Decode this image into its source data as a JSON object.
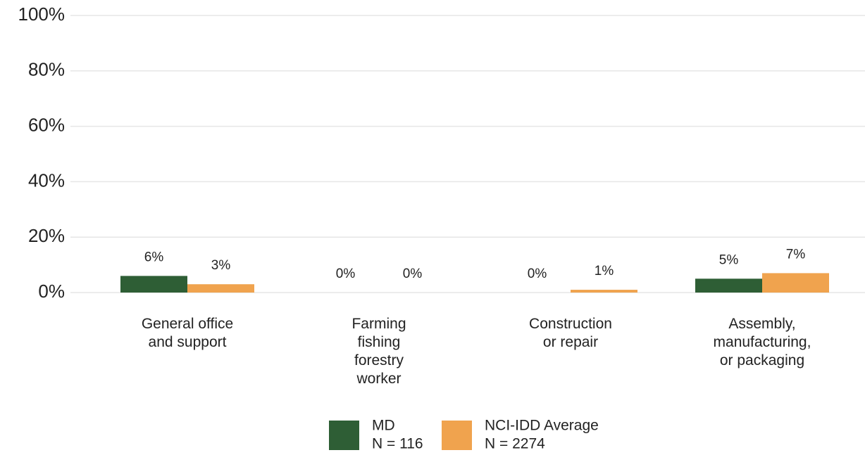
{
  "chart_data": {
    "type": "bar",
    "categories": [
      "General office\nand support",
      "Farming\nfishing\nforestry\nworker",
      "Construction\nor repair",
      "Assembly,\nmanufacturing,\nor packaging"
    ],
    "series": [
      {
        "name": "MD",
        "n_label": "N = 116",
        "color": "#2e5e35",
        "values": [
          6,
          0,
          0,
          5
        ],
        "value_labels": [
          "6%",
          "0%",
          "0%",
          "5%"
        ]
      },
      {
        "name": "NCI-IDD Average",
        "n_label": "N = 2274",
        "color": "#f0a34e",
        "values": [
          3,
          0,
          1,
          7
        ],
        "value_labels": [
          "3%",
          "0%",
          "1%",
          "7%"
        ]
      }
    ],
    "ylim": [
      0,
      100
    ],
    "yticks": [
      {
        "value": 0,
        "label": "0%"
      },
      {
        "value": 20,
        "label": "20%"
      },
      {
        "value": 40,
        "label": "40%"
      },
      {
        "value": 60,
        "label": "60%"
      },
      {
        "value": 80,
        "label": "80%"
      },
      {
        "value": 100,
        "label": "100%"
      }
    ],
    "grid": true,
    "legend": "bottom"
  }
}
